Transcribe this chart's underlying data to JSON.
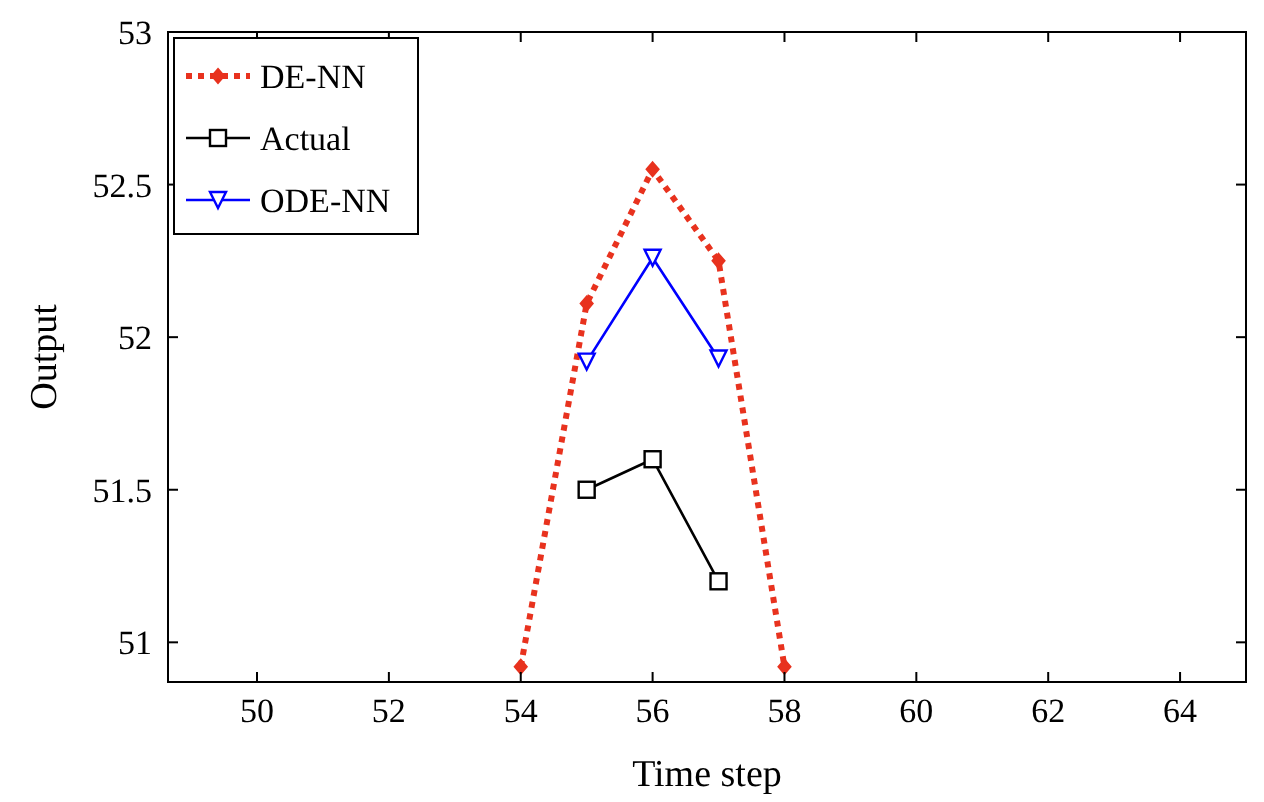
{
  "chart_data": {
    "type": "line",
    "xlabel": "Time step",
    "ylabel": "Output",
    "x": [
      54,
      55,
      56,
      57,
      58
    ],
    "series": [
      {
        "name": "DE-NN",
        "color": "#e8321e",
        "values": [
          50.92,
          52.11,
          52.55,
          52.25,
          50.92
        ],
        "marker": "diamond",
        "line_style": "dotted"
      },
      {
        "name": "Actual",
        "color": "#000000",
        "values": [
          null,
          51.5,
          51.6,
          51.2,
          null
        ],
        "marker": "square",
        "line_style": "solid"
      },
      {
        "name": "ODE-NN",
        "color": "#0000ff",
        "values": [
          null,
          51.92,
          52.26,
          51.93,
          null
        ],
        "marker": "triangle",
        "line_style": "solid"
      }
    ],
    "xlim": [
      48.65,
      65
    ],
    "xticks": [
      50,
      52,
      54,
      56,
      58,
      60,
      62,
      64
    ],
    "ylim": [
      50.87,
      53
    ],
    "yticks": [
      51,
      51.5,
      52,
      52.5,
      53
    ],
    "grid": false,
    "legend": "top left"
  }
}
